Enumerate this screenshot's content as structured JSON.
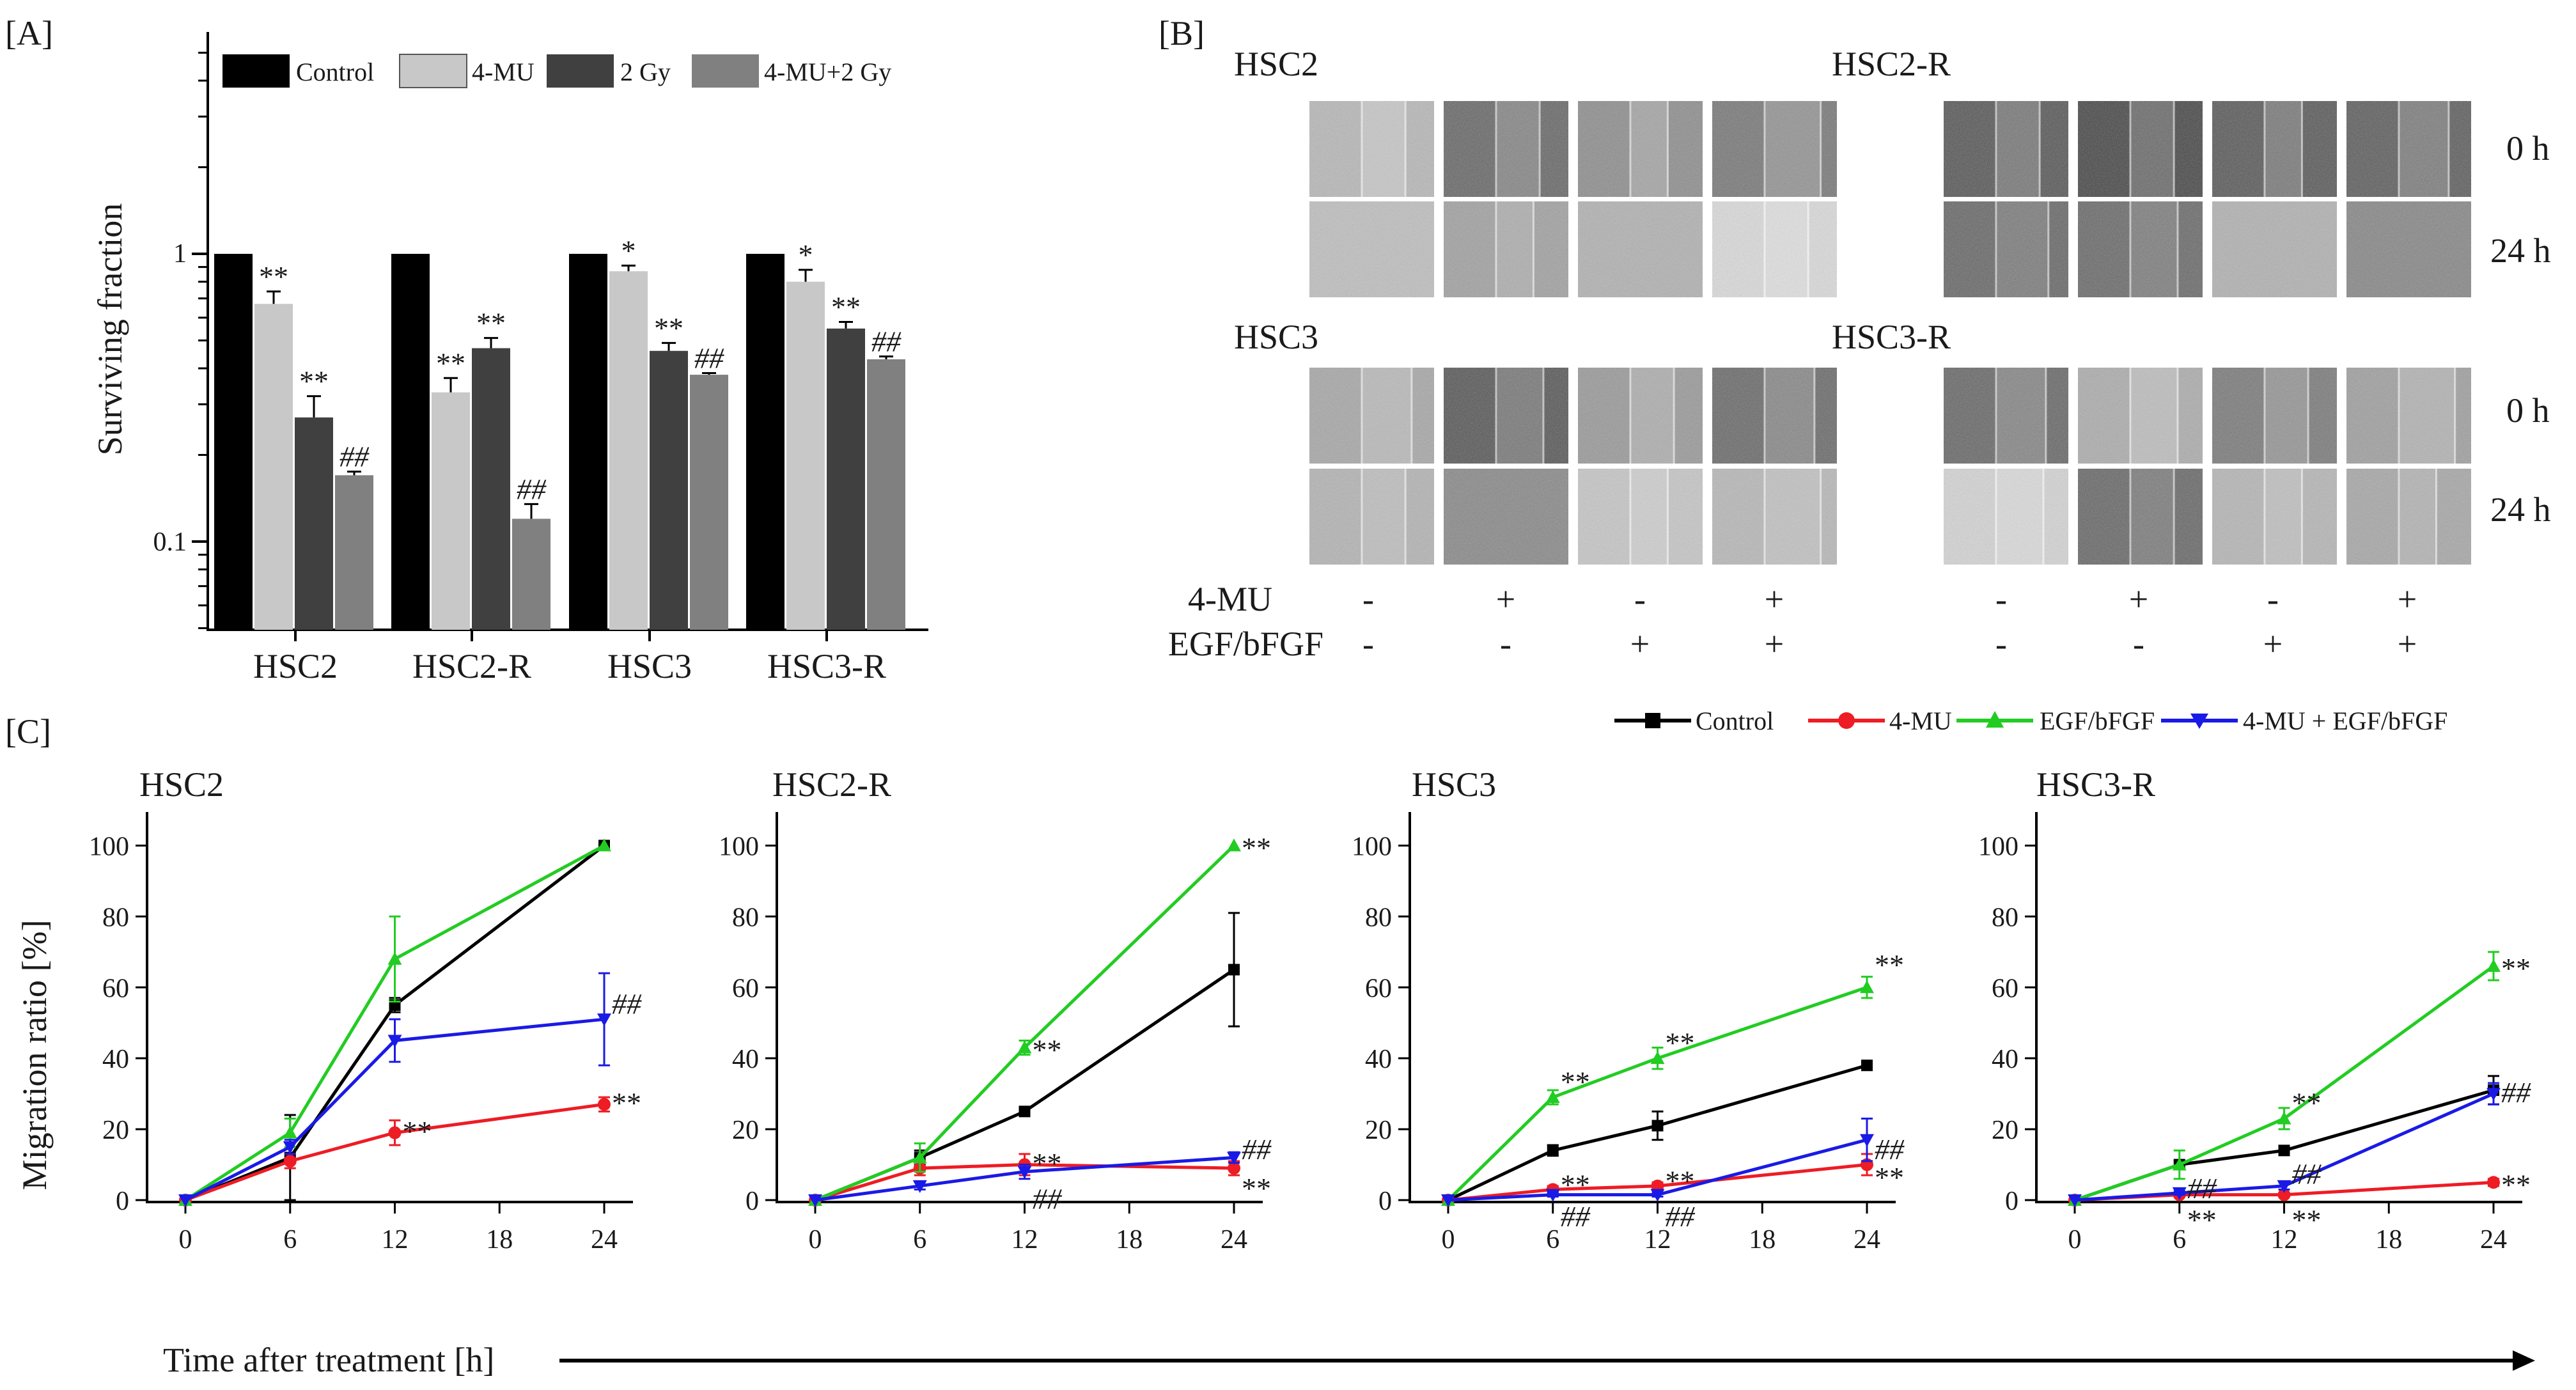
{
  "figure_title": "",
  "panels": {
    "a": "[A]",
    "b": "[B]",
    "c": "[C]"
  },
  "colors": {
    "control_bar": "#000000",
    "mu_bar": "#c8c8c8",
    "gy_bar": "#404040",
    "combo_bar": "#808080",
    "line_control": "#000000",
    "line_mu": "#ee1c24",
    "line_egf": "#22cc22",
    "line_combo": "#1a1ae6"
  },
  "panel_b": {
    "cells": [
      "HSC2",
      "HSC2-R",
      "HSC3",
      "HSC3-R"
    ],
    "times": [
      "0 h",
      "24 h"
    ],
    "treatment_labels": [
      "4-MU",
      "EGF/bFGF"
    ],
    "mu_row": [
      "-",
      "+",
      "-",
      "+",
      "-",
      "+",
      "-",
      "+"
    ],
    "egf_row": [
      "-",
      "-",
      "+",
      "+",
      "-",
      "-",
      "+",
      "+"
    ]
  },
  "panel_c_xlabel": "Time after treatment [h]",
  "chart_data": [
    {
      "type": "bar",
      "panel": "A",
      "scale": "log",
      "ylabel": "Surviving fraction",
      "ylim": [
        0.05,
        5
      ],
      "yticks": [
        "0.1",
        "1"
      ],
      "categories": [
        "HSC2",
        "HSC2-R",
        "HSC3",
        "HSC3-R"
      ],
      "legend": [
        "Control",
        "4-MU",
        "2 Gy",
        "4-MU+2 Gy"
      ],
      "series": [
        {
          "name": "Control",
          "values": [
            1,
            1,
            1,
            1
          ],
          "errors": [
            0,
            0,
            0,
            0
          ],
          "marks": [
            "",
            "",
            "",
            ""
          ]
        },
        {
          "name": "4-MU",
          "values": [
            0.67,
            0.33,
            0.87,
            0.8
          ],
          "errors": [
            0.07,
            0.04,
            0.04,
            0.08
          ],
          "marks": [
            "**",
            "**",
            "*",
            "*"
          ]
        },
        {
          "name": "2 Gy",
          "values": [
            0.27,
            0.47,
            0.46,
            0.55
          ],
          "errors": [
            0.05,
            0.04,
            0.03,
            0.03
          ],
          "marks": [
            "**",
            "**",
            "**",
            "**"
          ]
        },
        {
          "name": "4-MU+2 Gy",
          "values": [
            0.17,
            0.12,
            0.38,
            0.43
          ],
          "errors": [
            0.005,
            0.015,
            0.005,
            0.01
          ],
          "marks": [
            "##",
            "##",
            "##",
            "##"
          ]
        }
      ]
    },
    {
      "type": "line",
      "panel": "C",
      "title": "HSC2",
      "ylabel": "Migration ratio [%]",
      "x": [
        0,
        6,
        12,
        18,
        24
      ],
      "ylim": [
        0,
        110
      ],
      "yticks": [
        "0",
        "20",
        "40",
        "60",
        "80",
        "100"
      ],
      "xticks": [
        "0",
        "6",
        "12",
        "18",
        "24"
      ],
      "series": [
        {
          "name": "Control",
          "x": [
            0,
            6,
            12,
            24
          ],
          "values": [
            0,
            12,
            55,
            100
          ],
          "errors": [
            0,
            12,
            2,
            0
          ]
        },
        {
          "name": "4-MU",
          "x": [
            0,
            6,
            12,
            24
          ],
          "values": [
            0,
            11,
            19,
            27
          ],
          "errors": [
            0,
            2,
            3.5,
            2
          ]
        },
        {
          "name": "EGF/bFGF",
          "x": [
            0,
            6,
            12,
            24
          ],
          "values": [
            0,
            19,
            68,
            100
          ],
          "errors": [
            0,
            4,
            12,
            0
          ]
        },
        {
          "name": "4-MU + EGF/bFGF",
          "x": [
            0,
            6,
            12,
            24
          ],
          "values": [
            0,
            15,
            45,
            51
          ],
          "errors": [
            0,
            2,
            6,
            13
          ]
        }
      ],
      "annotations": [
        {
          "text": "**",
          "x": 12,
          "y": 20,
          "series": "4-MU"
        },
        {
          "text": "**",
          "x": 24,
          "y": 28,
          "series": "4-MU"
        },
        {
          "text": "##",
          "x": 24,
          "y": 56,
          "series": "4-MU + EGF/bFGF"
        }
      ]
    },
    {
      "type": "line",
      "panel": "C",
      "title": "HSC2-R",
      "ylabel": "",
      "x": [
        0,
        6,
        12,
        18,
        24
      ],
      "ylim": [
        0,
        110
      ],
      "yticks": [
        "0",
        "20",
        "40",
        "60",
        "80",
        "100"
      ],
      "xticks": [
        "0",
        "6",
        "12",
        "18",
        "24"
      ],
      "series": [
        {
          "name": "Control",
          "x": [
            0,
            6,
            12,
            24
          ],
          "values": [
            0,
            12,
            25,
            65
          ],
          "errors": [
            0,
            2,
            1,
            16
          ]
        },
        {
          "name": "4-MU",
          "x": [
            0,
            6,
            12,
            24
          ],
          "values": [
            0,
            9,
            10,
            9
          ],
          "errors": [
            0,
            2,
            3,
            2
          ]
        },
        {
          "name": "EGF/bFGF",
          "x": [
            0,
            6,
            12,
            24
          ],
          "values": [
            0,
            12,
            43,
            100
          ],
          "errors": [
            0,
            4,
            2,
            0
          ]
        },
        {
          "name": "4-MU + EGF/bFGF",
          "x": [
            0,
            6,
            12,
            24
          ],
          "values": [
            0,
            4,
            8,
            12
          ],
          "errors": [
            0,
            1,
            2,
            1.5
          ]
        }
      ],
      "annotations": [
        {
          "text": "**",
          "x": 12,
          "y": 43,
          "series": "EGF/bFGF"
        },
        {
          "text": "**",
          "x": 24,
          "y": 100,
          "series": "EGF/bFGF"
        },
        {
          "text": "**",
          "x": 12,
          "y": 11,
          "series": "4-MU"
        },
        {
          "text": "**",
          "x": 24,
          "y": 4,
          "series": "4-MU"
        },
        {
          "text": "##",
          "x": 12,
          "y": 1,
          "series": "4-MU + EGF/bFGF"
        },
        {
          "text": "##",
          "x": 24,
          "y": 15,
          "series": "4-MU + EGF/bFGF"
        }
      ]
    },
    {
      "type": "line",
      "panel": "C",
      "title": "HSC3",
      "ylabel": "",
      "x": [
        0,
        6,
        12,
        18,
        24
      ],
      "ylim": [
        0,
        110
      ],
      "yticks": [
        "0",
        "20",
        "40",
        "60",
        "80",
        "100"
      ],
      "xticks": [
        "0",
        "6",
        "12",
        "18",
        "24"
      ],
      "series": [
        {
          "name": "Control",
          "x": [
            0,
            6,
            12,
            24
          ],
          "values": [
            0,
            14,
            21,
            38
          ],
          "errors": [
            0,
            1.5,
            4,
            1
          ]
        },
        {
          "name": "4-MU",
          "x": [
            0,
            6,
            12,
            24
          ],
          "values": [
            0,
            3,
            4,
            10
          ],
          "errors": [
            0,
            1,
            1,
            3
          ]
        },
        {
          "name": "EGF/bFGF",
          "x": [
            0,
            6,
            12,
            24
          ],
          "values": [
            0,
            29,
            40,
            60
          ],
          "errors": [
            0,
            2,
            3,
            3
          ]
        },
        {
          "name": "4-MU + EGF/bFGF",
          "x": [
            0,
            6,
            12,
            24
          ],
          "values": [
            0,
            1.5,
            1.5,
            17
          ],
          "errors": [
            0,
            0.5,
            0.5,
            6
          ]
        }
      ],
      "annotations": [
        {
          "text": "**",
          "x": 6,
          "y": 34,
          "series": "EGF/bFGF"
        },
        {
          "text": "**",
          "x": 12,
          "y": 45,
          "series": "EGF/bFGF"
        },
        {
          "text": "**",
          "x": 24,
          "y": 67,
          "series": "EGF/bFGF"
        },
        {
          "text": "**",
          "x": 6,
          "y": 5,
          "series": "4-MU"
        },
        {
          "text": "**",
          "x": 12,
          "y": 6,
          "series": "4-MU"
        },
        {
          "text": "**",
          "x": 24,
          "y": 7,
          "series": "4-MU"
        },
        {
          "text": "##",
          "x": 6,
          "y": -4,
          "series": "4-MU + EGF/bFGF"
        },
        {
          "text": "##",
          "x": 12,
          "y": -4,
          "series": "4-MU + EGF/bFGF"
        },
        {
          "text": "##",
          "x": 24,
          "y": 15,
          "series": "4-MU + EGF/bFGF"
        }
      ]
    },
    {
      "type": "line",
      "panel": "C",
      "title": "HSC3-R",
      "ylabel": "",
      "x": [
        0,
        6,
        12,
        18,
        24
      ],
      "ylim": [
        0,
        110
      ],
      "yticks": [
        "0",
        "20",
        "40",
        "60",
        "80",
        "100"
      ],
      "xticks": [
        "0",
        "6",
        "12",
        "18",
        "24"
      ],
      "series": [
        {
          "name": "Control",
          "x": [
            0,
            6,
            12,
            24
          ],
          "values": [
            0,
            10,
            14,
            31
          ],
          "errors": [
            0,
            1,
            1,
            4
          ]
        },
        {
          "name": "4-MU",
          "x": [
            0,
            6,
            12,
            24
          ],
          "values": [
            0,
            1.5,
            1.5,
            5
          ],
          "errors": [
            0,
            0.5,
            0.5,
            1
          ]
        },
        {
          "name": "EGF/bFGF",
          "x": [
            0,
            6,
            12,
            24
          ],
          "values": [
            0,
            10,
            23,
            66
          ],
          "errors": [
            0,
            4,
            3,
            4
          ]
        },
        {
          "name": "4-MU + EGF/bFGF",
          "x": [
            0,
            6,
            12,
            24
          ],
          "values": [
            0,
            2,
            4,
            30
          ],
          "errors": [
            0,
            0.5,
            1,
            3
          ]
        }
      ],
      "annotations": [
        {
          "text": "**",
          "x": 12,
          "y": 28,
          "series": "EGF/bFGF"
        },
        {
          "text": "**",
          "x": 24,
          "y": 66,
          "series": "EGF/bFGF"
        },
        {
          "text": "**",
          "x": 6,
          "y": -5,
          "series": "4-MU"
        },
        {
          "text": "**",
          "x": 12,
          "y": -5,
          "series": "4-MU"
        },
        {
          "text": "**",
          "x": 24,
          "y": 5,
          "series": "4-MU"
        },
        {
          "text": "##",
          "x": 6,
          "y": 4,
          "series": "4-MU + EGF/bFGF"
        },
        {
          "text": "##",
          "x": 12,
          "y": 8,
          "series": "4-MU + EGF/bFGF"
        },
        {
          "text": "##",
          "x": 24,
          "y": 31,
          "series": "4-MU + EGF/bFGF"
        }
      ],
      "legend": [
        "Control",
        "4-MU",
        "EGF/bFGF",
        "4-MU + EGF/bFGF"
      ]
    }
  ]
}
